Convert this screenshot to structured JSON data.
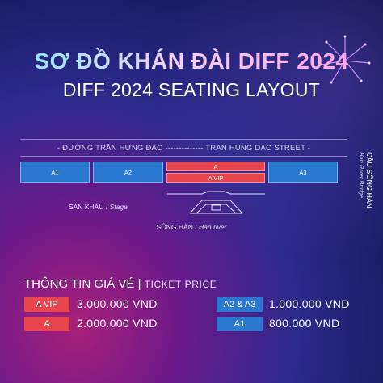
{
  "title_vn": "SƠ ĐỒ KHÁN ĐÀI DIFF 2024",
  "title_en": "DIFF 2024 SEATING LAYOUT",
  "street_label": "- ĐƯỜNG TRẦN HƯNG ĐẠO -------------- TRAN HUNG DAO STREET -",
  "blocks": {
    "a1": "A1",
    "a2": "A2",
    "a": "A",
    "avip": "A VIP",
    "a3": "A3"
  },
  "stage_label_vn": "SÂN KHẤU",
  "stage_label_en": "Stage",
  "river_label_vn": "SÔNG HÀN",
  "river_label_en": "Han river",
  "bridge_vn": "CẦU SÔNG HÀN",
  "bridge_en": "Han River Bridge",
  "ticket": {
    "heading_vn": "THÔNG TIN GIÁ VÉ",
    "separator": "|",
    "heading_en": "TICKET PRICE",
    "items": [
      {
        "zone": "A VIP",
        "price": "3.000.000 VND",
        "color": "#e8454f"
      },
      {
        "zone": "A",
        "price": "2.000.000 VND",
        "color": "#e8454f"
      },
      {
        "zone": "A2 & A3",
        "price": "1.000.000 VND",
        "color": "#2a78cf"
      },
      {
        "zone": "A1",
        "price": "800.000 VND",
        "color": "#2a78cf"
      }
    ]
  },
  "colors": {
    "red": "#e8454f",
    "blue": "#2a78cf"
  }
}
